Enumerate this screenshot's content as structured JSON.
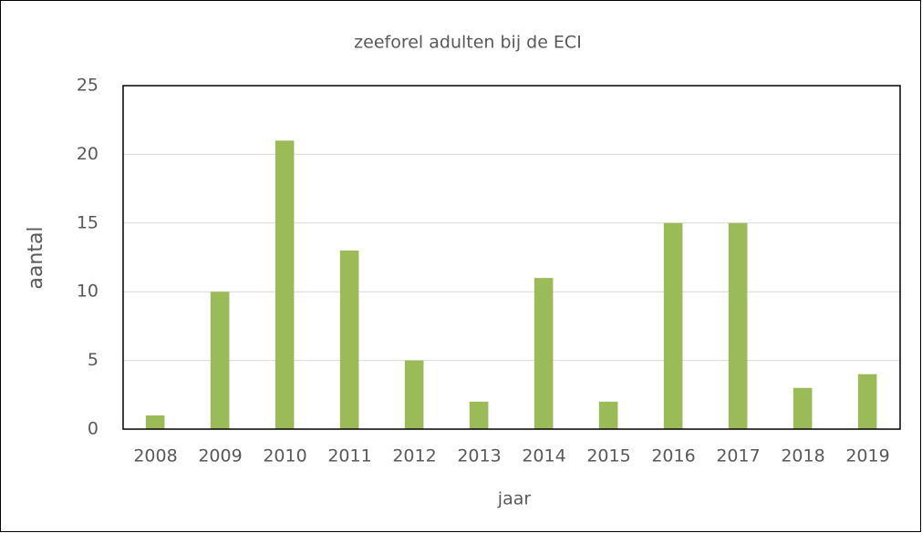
{
  "chart_data": {
    "type": "bar",
    "title": "zeeforel adulten bij de ECI",
    "x_label": "jaar",
    "y_label": "aantal",
    "categories": [
      "2008",
      "2009",
      "2010",
      "2011",
      "2012",
      "2013",
      "2014",
      "2015",
      "2016",
      "2017",
      "2018",
      "2019"
    ],
    "values": [
      1,
      10,
      21,
      13,
      5,
      2,
      11,
      2,
      15,
      15,
      3,
      4
    ],
    "color": "#9bbb59",
    "ylim": [
      0,
      25
    ],
    "yticks": [
      0,
      5,
      10,
      15,
      20,
      25
    ],
    "grid": true
  }
}
